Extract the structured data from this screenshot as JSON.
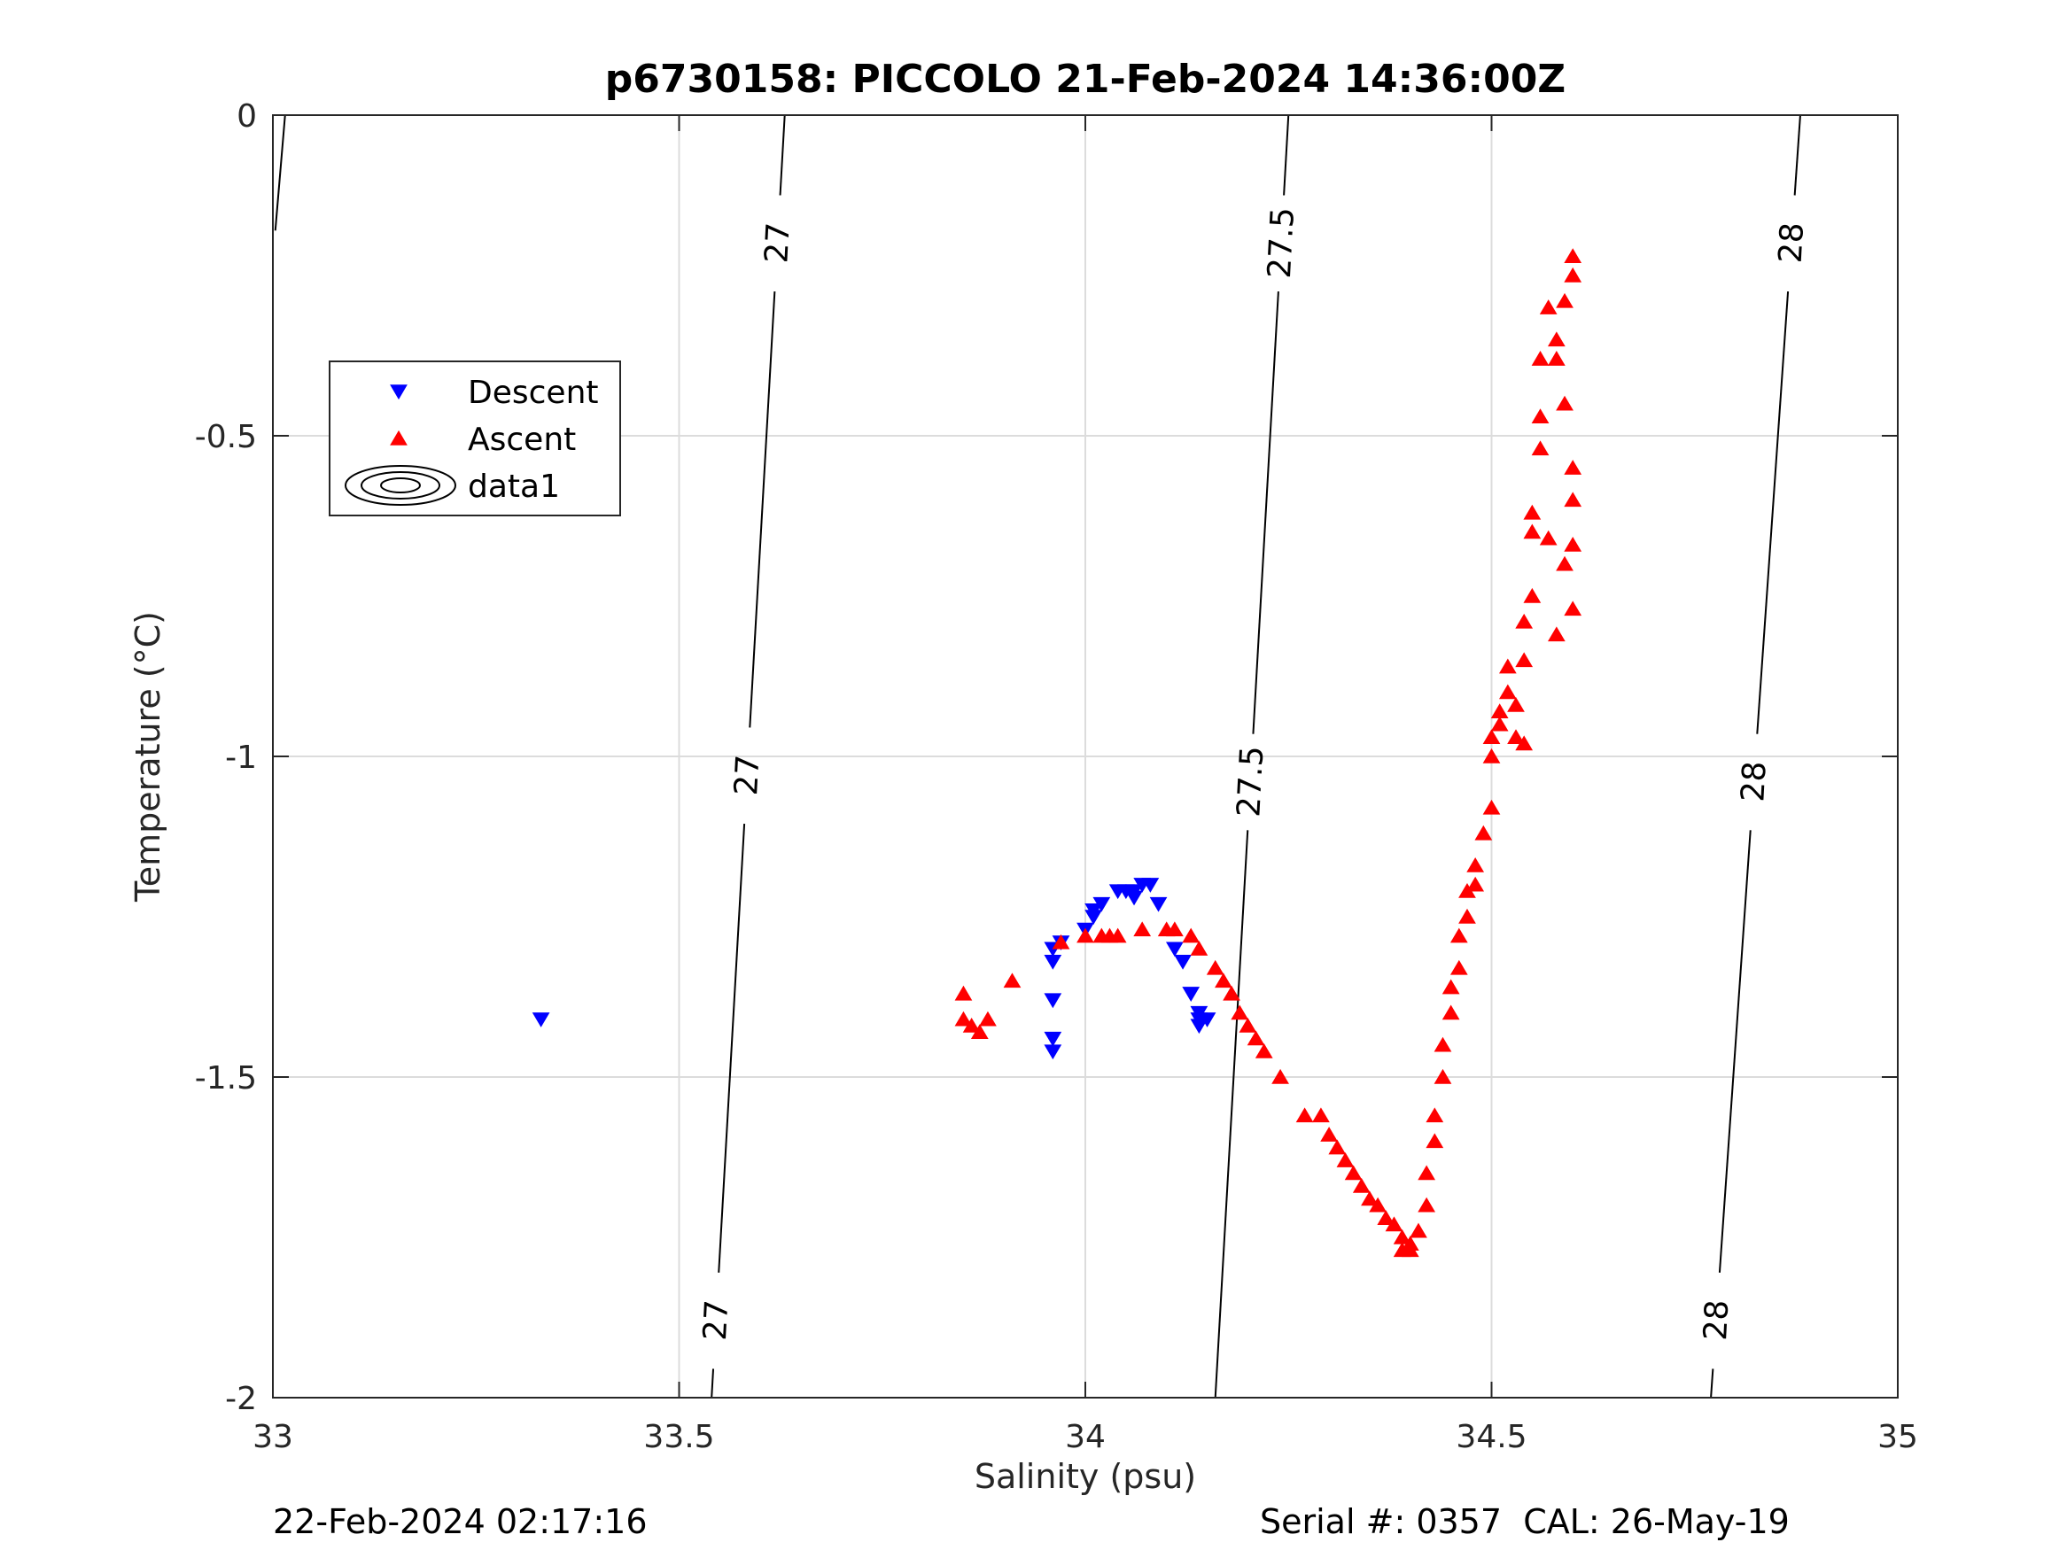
{
  "footer": {
    "timestamp": "22-Feb-2024 02:17:16",
    "serial": "Serial #: 0357  CAL: 26-May-19"
  },
  "chart_data": {
    "type": "scatter",
    "title": "p6730158: PICCOLO 21-Feb-2024 14:36:00Z",
    "xlabel": "Salinity (psu)",
    "ylabel": "Temperature (°C)",
    "xlim": [
      33,
      35
    ],
    "ylim": [
      -2,
      0
    ],
    "xticks": [
      33,
      33.5,
      34,
      34.5,
      35
    ],
    "xtick_labels": [
      "33",
      "33.5",
      "34",
      "34.5",
      "35"
    ],
    "yticks": [
      0,
      -0.5,
      -1,
      -1.5,
      -2
    ],
    "ytick_labels": [
      "0",
      "-0.5",
      "-1",
      "-1.5",
      "-2"
    ],
    "grid": true,
    "legend": {
      "placement": "upper-left",
      "entries": [
        "Descent",
        "Ascent",
        "data1"
      ]
    },
    "colors": {
      "descent": "#0000ff",
      "ascent": "#ff0000",
      "contour": "#000000",
      "grid": "#dcdcdc"
    },
    "series": [
      {
        "name": "Descent",
        "marker": "triangle-down",
        "x": [
          33.33,
          33.96,
          33.96,
          33.96,
          33.96,
          33.96,
          33.97,
          34.0,
          34.01,
          34.01,
          34.02,
          34.04,
          34.05,
          34.06,
          34.06,
          34.07,
          34.08,
          34.09,
          34.11,
          34.12,
          34.13,
          34.14,
          34.14,
          34.14,
          34.15
        ],
        "y": [
          -1.41,
          -1.46,
          -1.44,
          -1.38,
          -1.32,
          -1.3,
          -1.29,
          -1.27,
          -1.25,
          -1.24,
          -1.23,
          -1.21,
          -1.21,
          -1.22,
          -1.21,
          -1.2,
          -1.2,
          -1.23,
          -1.3,
          -1.32,
          -1.37,
          -1.41,
          -1.4,
          -1.42,
          -1.41
        ]
      },
      {
        "name": "Ascent",
        "marker": "triangle-up",
        "x": [
          33.85,
          33.85,
          33.86,
          33.87,
          33.88,
          33.91,
          33.97,
          34.0,
          34.02,
          34.03,
          34.04,
          34.07,
          34.1,
          34.11,
          34.13,
          34.14,
          34.16,
          34.17,
          34.18,
          34.19,
          34.2,
          34.21,
          34.22,
          34.24,
          34.27,
          34.29,
          34.3,
          34.31,
          34.32,
          34.33,
          34.34,
          34.35,
          34.36,
          34.37,
          34.38,
          34.39,
          34.39,
          34.4,
          34.4,
          34.41,
          34.42,
          34.42,
          34.43,
          34.43,
          34.44,
          34.44,
          34.45,
          34.45,
          34.46,
          34.46,
          34.47,
          34.47,
          34.48,
          34.48,
          34.49,
          34.5,
          34.5,
          34.5,
          34.51,
          34.51,
          34.52,
          34.52,
          34.53,
          34.53,
          34.54,
          34.54,
          34.54,
          34.55,
          34.55,
          34.55,
          34.56,
          34.56,
          34.56,
          34.57,
          34.57,
          34.58,
          34.58,
          34.58,
          34.59,
          34.59,
          34.59,
          34.6,
          34.6,
          34.6,
          34.6,
          34.6,
          34.6
        ],
        "y": [
          -1.37,
          -1.41,
          -1.42,
          -1.43,
          -1.41,
          -1.35,
          -1.29,
          -1.28,
          -1.28,
          -1.28,
          -1.28,
          -1.27,
          -1.27,
          -1.27,
          -1.28,
          -1.3,
          -1.33,
          -1.35,
          -1.37,
          -1.4,
          -1.42,
          -1.44,
          -1.46,
          -1.5,
          -1.56,
          -1.56,
          -1.59,
          -1.61,
          -1.63,
          -1.65,
          -1.67,
          -1.69,
          -1.7,
          -1.72,
          -1.73,
          -1.75,
          -1.77,
          -1.77,
          -1.76,
          -1.74,
          -1.7,
          -1.65,
          -1.6,
          -1.56,
          -1.5,
          -1.45,
          -1.4,
          -1.36,
          -1.33,
          -1.28,
          -1.25,
          -1.21,
          -1.2,
          -1.17,
          -1.12,
          -1.08,
          -1.0,
          -0.97,
          -0.93,
          -0.95,
          -0.9,
          -0.86,
          -0.92,
          -0.97,
          -0.98,
          -0.85,
          -0.79,
          -0.75,
          -0.65,
          -0.62,
          -0.52,
          -0.47,
          -0.38,
          -0.3,
          -0.66,
          -0.35,
          -0.38,
          -0.81,
          -0.45,
          -0.7,
          -0.29,
          -0.22,
          -0.25,
          -0.55,
          -0.6,
          -0.67,
          -0.77
        ]
      }
    ],
    "contours": [
      {
        "level": "27",
        "x_top": 33.63,
        "x_bottom": 33.54,
        "labels_y": [
          -0.2,
          -1.03,
          -1.88
        ]
      },
      {
        "level": "27.5",
        "x_top": 34.25,
        "x_bottom": 34.16,
        "labels_y": [
          -0.2,
          -1.04
        ]
      },
      {
        "level": "28",
        "x_top": 34.88,
        "x_bottom": 34.77,
        "labels_y": [
          -0.2,
          -1.04,
          -1.88
        ]
      }
    ]
  }
}
